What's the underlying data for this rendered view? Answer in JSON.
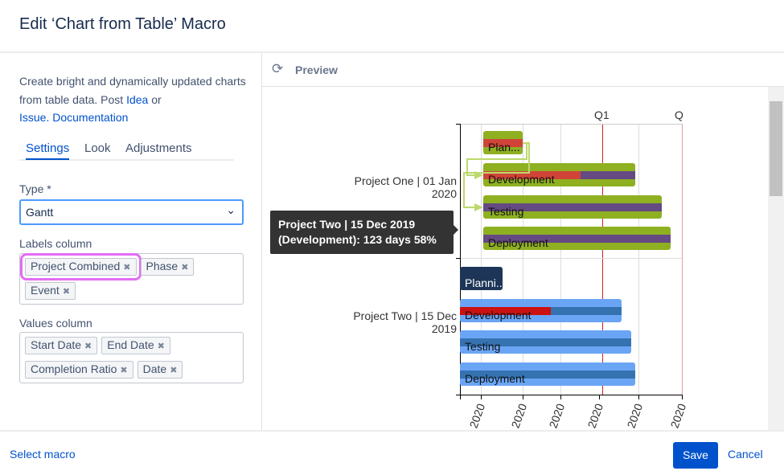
{
  "dialog": {
    "title": "Edit ‘Chart from Table’ Macro"
  },
  "sidebar": {
    "desc_text": "Create bright and dynamically updated charts from table data. Post ",
    "idea_link": "Idea",
    "or_text": " or ",
    "issue_link": "Issue.",
    "doc_link": "Documentation",
    "tabs": [
      {
        "label": "Settings",
        "active": true
      },
      {
        "label": "Look"
      },
      {
        "label": "Adjustments"
      }
    ],
    "type_label": "Type *",
    "type_value": "Gantt",
    "labels_column_label": "Labels column",
    "labels_chips": [
      "Project Combined",
      "Phase",
      "Event"
    ],
    "values_column_label": "Values column",
    "values_chips": [
      "Start Date",
      "End Date",
      "Completion Ratio",
      "Date"
    ],
    "remove_glyph": "✖"
  },
  "preview": {
    "title": "Preview",
    "refresh_icon": "refresh-icon",
    "chart_data": {
      "type": "gantt",
      "top_axis_labels": [
        "Q1",
        "Q"
      ],
      "x_tick_labels": [
        "2020",
        "2020",
        "2020",
        "2020",
        "2020",
        "2020"
      ],
      "projects": [
        {
          "label_line1": "Project One | 01 Jan",
          "label_line2": "2020",
          "color": "#8eb021",
          "tasks": [
            "Plan...",
            "Development",
            "Testing",
            "Deployment"
          ]
        },
        {
          "label_line1": "Project Two | 15 Dec",
          "label_line2": "2019",
          "color": "#6aa5f5",
          "tasks": [
            "Planni...",
            "Development",
            "Testing",
            "Deployment"
          ]
        }
      ],
      "tooltip": "Project Two | 15 Dec 2019 (Development): 123 days 58%"
    }
  },
  "footer": {
    "select_macro": "Select macro",
    "save": "Save",
    "cancel": "Cancel"
  }
}
